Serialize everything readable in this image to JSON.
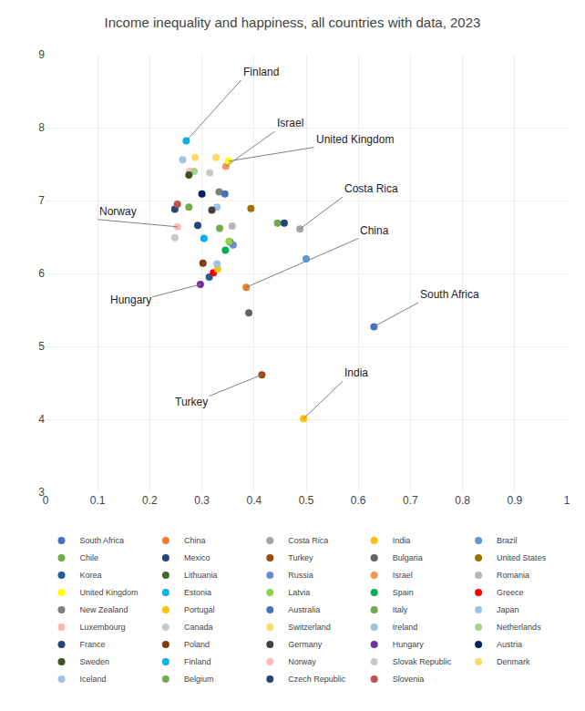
{
  "chart_data": {
    "type": "scatter",
    "title": "Income inequality and happiness, all countries with data, 2023",
    "xlim": [
      0,
      1
    ],
    "ylim": [
      3,
      9
    ],
    "xticks": [
      0,
      0.1,
      0.2,
      0.3,
      0.4,
      0.5,
      0.6,
      0.7,
      0.8,
      0.9,
      1
    ],
    "yticks": [
      3,
      4,
      5,
      6,
      7,
      8,
      9
    ],
    "grid": true,
    "legend": "bottom",
    "marker": "circle",
    "series": [
      {
        "name": "South Africa",
        "color": "#4472C4",
        "x": [
          0.63
        ],
        "values": [
          5.27
        ]
      },
      {
        "name": "China",
        "color": "#ED7D31",
        "x": [
          0.385
        ],
        "values": [
          5.81
        ]
      },
      {
        "name": "Costa Rica",
        "color": "#A5A5A5",
        "x": [
          0.488
        ],
        "values": [
          6.61
        ]
      },
      {
        "name": "India",
        "color": "#FFC000",
        "x": [
          0.495
        ],
        "values": [
          4.01
        ]
      },
      {
        "name": "Brazil",
        "color": "#5B9BD5",
        "x": [
          0.5
        ],
        "values": [
          6.2
        ]
      },
      {
        "name": "Chile",
        "color": "#70AD47",
        "x": [
          0.445
        ],
        "values": [
          6.69
        ]
      },
      {
        "name": "Mexico",
        "color": "#264478",
        "x": [
          0.458
        ],
        "values": [
          6.69
        ]
      },
      {
        "name": "Turkey",
        "color": "#9E480E",
        "x": [
          0.415
        ],
        "values": [
          4.61
        ]
      },
      {
        "name": "Bulgaria",
        "color": "#636363",
        "x": [
          0.39
        ],
        "values": [
          5.46
        ]
      },
      {
        "name": "United States",
        "color": "#997300",
        "x": [
          0.394
        ],
        "values": [
          6.89
        ]
      },
      {
        "name": "Korea",
        "color": "#255E91",
        "x": [
          0.314
        ],
        "values": [
          5.95
        ]
      },
      {
        "name": "Lithuania",
        "color": "#43682B",
        "x": [
          0.354
        ],
        "values": [
          6.43
        ]
      },
      {
        "name": "Russia",
        "color": "#698ED0",
        "x": [
          0.36
        ],
        "values": [
          6.39
        ]
      },
      {
        "name": "Israel",
        "color": "#F1975A",
        "x": [
          0.346
        ],
        "values": [
          7.47
        ]
      },
      {
        "name": "Romania",
        "color": "#B7B7B7",
        "x": [
          0.358
        ],
        "values": [
          6.65
        ]
      },
      {
        "name": "United Kingdom",
        "color": "#FFFF00",
        "x": [
          0.351
        ],
        "values": [
          7.54
        ]
      },
      {
        "name": "Estonia",
        "color": "#00B0F0",
        "x": [
          0.304
        ],
        "values": [
          6.48
        ]
      },
      {
        "name": "Latvia",
        "color": "#92D050",
        "x": [
          0.352
        ],
        "values": [
          6.44
        ]
      },
      {
        "name": "Spain",
        "color": "#00B050",
        "x": [
          0.345
        ],
        "values": [
          6.32
        ]
      },
      {
        "name": "Greece",
        "color": "#FF0000",
        "x": [
          0.322
        ],
        "values": [
          6.01
        ]
      },
      {
        "name": "New Zealand",
        "color": "#7F7F7F",
        "x": [
          0.333
        ],
        "values": [
          7.12
        ]
      },
      {
        "name": "Portugal",
        "color": "#FFC000",
        "x": [
          0.33
        ],
        "values": [
          6.06
        ]
      },
      {
        "name": "Australia",
        "color": "#4472C4",
        "x": [
          0.344
        ],
        "values": [
          7.09
        ]
      },
      {
        "name": "Italy",
        "color": "#70AD47",
        "x": [
          0.334
        ],
        "values": [
          6.62
        ]
      },
      {
        "name": "Japan",
        "color": "#9DC3E6",
        "x": [
          0.329
        ],
        "values": [
          6.13
        ]
      },
      {
        "name": "Luxembourg",
        "color": "#FFB9B9",
        "x": [
          0.276
        ],
        "values": [
          7.4
        ]
      },
      {
        "name": "Canada",
        "color": "#C9C9C9",
        "x": [
          0.315
        ],
        "values": [
          7.38
        ]
      },
      {
        "name": "Switzerland",
        "color": "#FFD966",
        "x": [
          0.327
        ],
        "values": [
          7.59
        ]
      },
      {
        "name": "Ireland",
        "color": "#9DC3E6",
        "x": [
          0.329
        ],
        "values": [
          6.91
        ]
      },
      {
        "name": "Netherlands",
        "color": "#A9D18E",
        "x": [
          0.285
        ],
        "values": [
          7.4
        ]
      },
      {
        "name": "France",
        "color": "#264478",
        "x": [
          0.292
        ],
        "values": [
          6.66
        ]
      },
      {
        "name": "Poland",
        "color": "#843C0C",
        "x": [
          0.302
        ],
        "values": [
          6.14
        ]
      },
      {
        "name": "Germany",
        "color": "#404040",
        "x": [
          0.319
        ],
        "values": [
          6.87
        ]
      },
      {
        "name": "Hungary",
        "color": "#7030A0",
        "x": [
          0.297
        ],
        "values": [
          5.85
        ]
      },
      {
        "name": "Austria",
        "color": "#002060",
        "x": [
          0.3
        ],
        "values": [
          7.09
        ]
      },
      {
        "name": "Sweden",
        "color": "#375623",
        "x": [
          0.275
        ],
        "values": [
          7.35
        ]
      },
      {
        "name": "Finland",
        "color": "#00B0F0",
        "x": [
          0.27
        ],
        "values": [
          7.82
        ]
      },
      {
        "name": "Norway",
        "color": "#FFB9B9",
        "x": [
          0.253
        ],
        "values": [
          6.64
        ]
      },
      {
        "name": "Slovak Republic",
        "color": "#C9C9C9",
        "x": [
          0.248
        ],
        "values": [
          6.49
        ]
      },
      {
        "name": "Denmark",
        "color": "#FFD966",
        "x": [
          0.287
        ],
        "values": [
          7.59
        ]
      },
      {
        "name": "Iceland",
        "color": "#9DC3E6",
        "x": [
          0.263
        ],
        "values": [
          7.56
        ]
      },
      {
        "name": "Belgium",
        "color": "#70AD47",
        "x": [
          0.275
        ],
        "values": [
          6.91
        ]
      },
      {
        "name": "Czech Republic",
        "color": "#264478",
        "x": [
          0.248
        ],
        "values": [
          6.88
        ]
      },
      {
        "name": "Slovenia",
        "color": "#C0504D",
        "x": [
          0.253
        ],
        "values": [
          6.95
        ]
      }
    ],
    "annotations": [
      {
        "text": "Finland",
        "x": 0.27,
        "y": 7.82,
        "tx": 0.375,
        "ty": 8.65
      },
      {
        "text": "Israel",
        "x": 0.346,
        "y": 7.47,
        "tx": 0.44,
        "ty": 7.95
      },
      {
        "text": "United Kingdom",
        "x": 0.351,
        "y": 7.54,
        "tx": 0.515,
        "ty": 7.73
      },
      {
        "text": "Costa Rica",
        "x": 0.488,
        "y": 6.61,
        "tx": 0.57,
        "ty": 7.05
      },
      {
        "text": "China",
        "x": 0.385,
        "y": 5.81,
        "tx": 0.6,
        "ty": 6.48
      },
      {
        "text": "South Africa",
        "x": 0.63,
        "y": 5.27,
        "tx": 0.715,
        "ty": 5.6
      },
      {
        "text": "Norway",
        "x": 0.253,
        "y": 6.64,
        "tx": 0.1,
        "ty": 6.74
      },
      {
        "text": "Hungary",
        "x": 0.297,
        "y": 5.85,
        "tx": 0.12,
        "ty": 5.52
      },
      {
        "text": "Turkey",
        "x": 0.415,
        "y": 4.61,
        "tx": 0.245,
        "ty": 4.12
      },
      {
        "text": "India",
        "x": 0.495,
        "y": 4.01,
        "tx": 0.57,
        "ty": 4.52
      }
    ]
  }
}
